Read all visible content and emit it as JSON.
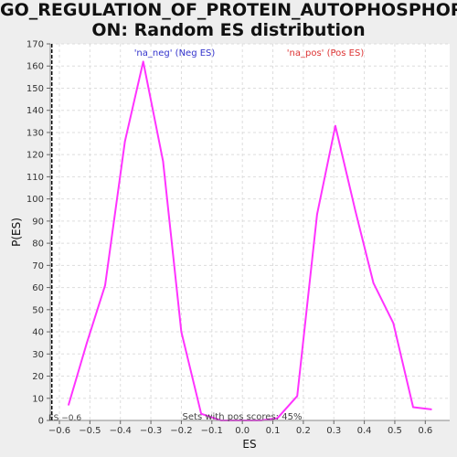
{
  "chart_data": {
    "type": "line",
    "title_line1": "GO_REGULATION_OF_PROTEIN_AUTOPHOSPHORYLATI",
    "title_line2": "ON: Random ES distribution",
    "xlabel": "ES",
    "ylabel": "P(ES)",
    "xlim": [
      -0.63,
      0.68
    ],
    "ylim": [
      0,
      170
    ],
    "x_ticks": [
      -0.6,
      -0.5,
      -0.4,
      -0.3,
      -0.2,
      -0.1,
      0.0,
      0.1,
      0.2,
      0.3,
      0.4,
      0.5,
      0.6
    ],
    "x_tick_labels": [
      "−0.6",
      "−0.5",
      "−0.4",
      "−0.3",
      "−0.2",
      "−0.1",
      "0.0",
      "0.1",
      "0.2",
      "0.3",
      "0.4",
      "0.5",
      "0.6"
    ],
    "y_ticks": [
      0,
      10,
      20,
      30,
      40,
      50,
      60,
      70,
      80,
      90,
      100,
      110,
      120,
      130,
      140,
      150,
      160,
      170
    ],
    "grid": true,
    "series": [
      {
        "color": "#ff33ff",
        "x": [
          -0.57,
          -0.51,
          -0.45,
          -0.385,
          -0.325,
          -0.26,
          -0.2,
          -0.135,
          -0.07,
          0.0,
          0.06,
          0.115,
          0.18,
          0.245,
          0.305,
          0.37,
          0.43,
          0.495,
          0.56,
          0.62
        ],
        "y": [
          7,
          35,
          61,
          126,
          162,
          117,
          40,
          3,
          0,
          0,
          0,
          1,
          11,
          93,
          133,
          95,
          62,
          44,
          6,
          5
        ]
      }
    ],
    "annotations": {
      "neg_label": "'na_neg' (Neg ES)",
      "pos_label": "'na_pos' (Pos ES)",
      "neg_color": "#3333cc",
      "pos_color": "#dd3333",
      "es_marker": "ES −0.6",
      "es_marker_x": -0.625,
      "sets_text": "Sets with pos scores: 45%"
    }
  }
}
